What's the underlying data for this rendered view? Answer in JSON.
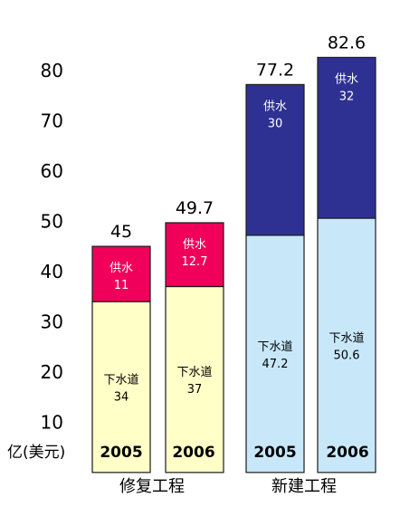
{
  "chart_data": {
    "type": "bar",
    "stacked": true,
    "unit_label": "亿(美元)",
    "y_ticks": [
      10,
      20,
      30,
      40,
      50,
      60,
      70,
      80
    ],
    "ylim": [
      7,
      86
    ],
    "groups": [
      {
        "name": "修复工程",
        "bars": [
          {
            "category": "2005",
            "total": "45",
            "segments": [
              {
                "name": "下水道",
                "value": 34,
                "label": "34",
                "color": "#ffffc8"
              },
              {
                "name": "供水",
                "value": 11,
                "label": "11",
                "color": "#f0005a"
              }
            ]
          },
          {
            "category": "2006",
            "total": "49.7",
            "segments": [
              {
                "name": "下水道",
                "value": 37,
                "label": "37",
                "color": "#ffffc8"
              },
              {
                "name": "供水",
                "value": 12.7,
                "label": "12.7",
                "color": "#f0005a"
              }
            ]
          }
        ]
      },
      {
        "name": "新建工程",
        "bars": [
          {
            "category": "2005",
            "total": "77.2",
            "segments": [
              {
                "name": "下水道",
                "value": 47.2,
                "label": "47.2",
                "color": "#c8e8fa"
              },
              {
                "name": "供水",
                "value": 30,
                "label": "30",
                "color": "#2e3192"
              }
            ]
          },
          {
            "category": "2006",
            "total": "82.6",
            "segments": [
              {
                "name": "下水道",
                "value": 50.6,
                "label": "50.6",
                "color": "#c8e8fa"
              },
              {
                "name": "供水",
                "value": 32,
                "label": "32",
                "color": "#2e3192"
              }
            ]
          }
        ]
      }
    ],
    "colors": {
      "repair_top_text": "#ffffff",
      "new_top_text": "#ffffff",
      "bottom_text": "#000000",
      "bar_outline": "#1a1a1a"
    }
  }
}
